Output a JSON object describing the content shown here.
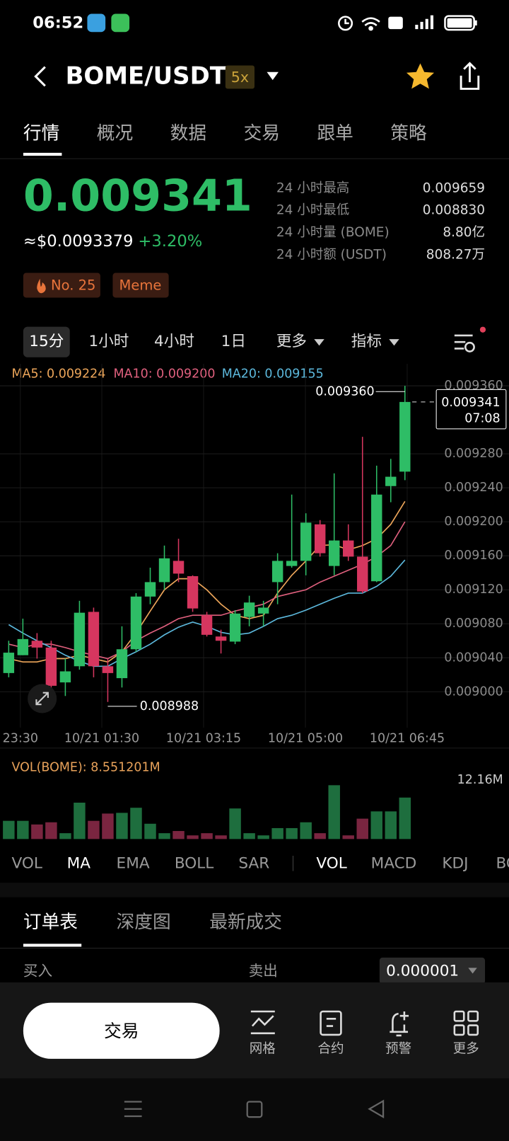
{
  "status_bar": {
    "time": "06:52"
  },
  "header": {
    "pair": "BOME/USDT",
    "leverage": "5x"
  },
  "tabs": [
    "行情",
    "概况",
    "数据",
    "交易",
    "跟单",
    "策略"
  ],
  "ticker": {
    "price": "0.009341",
    "usd_price": "≈$0.0093379",
    "change": "+3.20%",
    "tags": [
      "No. 25",
      "Meme"
    ],
    "stats": [
      {
        "label": "24 小时最高",
        "value": "0.009659"
      },
      {
        "label": "24 小时最低",
        "value": "0.008830"
      },
      {
        "label": "24 小时量 (BOME)",
        "value": "8.80亿"
      },
      {
        "label": "24 小时额 (USDT)",
        "value": "808.27万"
      }
    ]
  },
  "intervals": [
    "15分",
    "1小时",
    "4小时",
    "1日",
    "更多",
    "指标"
  ],
  "chart_data": {
    "type": "candlestick",
    "up_color": "#2ebd66",
    "down_color": "#d6365f",
    "legend_labels": [
      "MA5: 0.009224",
      "MA10: 0.009200",
      "MA20: 0.009155"
    ],
    "candles": {
      "open": [
        0.009022,
        0.009043,
        0.00906,
        0.009052,
        0.009011,
        0.00903,
        0.009094,
        0.00903,
        0.009016,
        0.00905,
        0.009112,
        0.009129,
        0.009154,
        0.009136,
        0.00909,
        0.009065,
        0.009059,
        0.009088,
        0.009092,
        0.009129,
        0.009148,
        0.009154,
        0.009197,
        0.009148,
        0.009178,
        0.009159,
        0.00913,
        0.009242,
        0.009259
      ],
      "high": [
        0.00906,
        0.009086,
        0.009069,
        0.00906,
        0.009039,
        0.009107,
        0.009099,
        0.009039,
        0.009077,
        0.009116,
        0.009146,
        0.009172,
        0.00918,
        0.009137,
        0.009094,
        0.009073,
        0.009096,
        0.009113,
        0.009107,
        0.009163,
        0.009232,
        0.00921,
        0.009202,
        0.009257,
        0.009197,
        0.0093,
        0.009266,
        0.009274,
        0.00936
      ],
      "low": [
        0.009017,
        0.009043,
        0.009039,
        0.008995,
        0.008995,
        0.009026,
        0.009017,
        0.008988,
        0.009005,
        0.009047,
        0.009103,
        0.00912,
        0.009129,
        0.009094,
        0.009065,
        0.009045,
        0.009056,
        0.009077,
        0.009077,
        0.009103,
        0.009146,
        0.009137,
        0.009159,
        0.009137,
        0.009154,
        0.009116,
        0.009129,
        0.009223,
        0.009249
      ],
      "close": [
        0.009046,
        0.009062,
        0.009052,
        0.009007,
        0.009024,
        0.009093,
        0.00903,
        0.009022,
        0.00905,
        0.009112,
        0.009129,
        0.009157,
        0.009139,
        0.009098,
        0.009067,
        0.00906,
        0.009092,
        0.009105,
        0.009099,
        0.009154,
        0.009154,
        0.009199,
        0.009163,
        0.009178,
        0.009159,
        0.009118,
        0.009232,
        0.009253,
        0.009341
      ]
    },
    "series": [
      {
        "name": "MA5",
        "color": "#eda65a",
        "values": [
          0.009039,
          0.009035,
          0.009035,
          0.009039,
          0.009039,
          0.009043,
          0.009039,
          0.009035,
          0.009047,
          0.009069,
          0.009095,
          0.00912,
          0.009133,
          0.009133,
          0.00912,
          0.009103,
          0.00909,
          0.009086,
          0.00909,
          0.009116,
          0.009137,
          0.009154,
          0.009172,
          0.009173,
          0.009167,
          0.009172,
          0.00918,
          0.009197,
          0.009224
        ]
      },
      {
        "name": "MA10",
        "color": "#e0607e",
        "values": [
          0.009056,
          0.009052,
          0.009056,
          0.009056,
          0.009052,
          0.009047,
          0.009043,
          0.009039,
          0.009047,
          0.00906,
          0.009069,
          0.009077,
          0.009086,
          0.00909,
          0.00909,
          0.00909,
          0.009095,
          0.009099,
          0.009103,
          0.009112,
          0.009116,
          0.00912,
          0.009129,
          0.009136,
          0.009143,
          0.00915,
          0.009159,
          0.009172,
          0.0092
        ]
      },
      {
        "name": "MA20",
        "color": "#5cb8dc",
        "values": [
          0.009079,
          0.009069,
          0.00906,
          0.009052,
          0.009043,
          0.009036,
          0.00903,
          0.00903,
          0.009039,
          0.009047,
          0.009056,
          0.009067,
          0.009076,
          0.009082,
          0.009077,
          0.00907,
          0.009067,
          0.009069,
          0.009077,
          0.009086,
          0.00909,
          0.009096,
          0.009103,
          0.00911,
          0.009116,
          0.009116,
          0.009124,
          0.009136,
          0.009155
        ]
      }
    ],
    "ylim": [
      0.008962,
      0.009379
    ],
    "yticks": [
      {
        "value": 0.00936,
        "label": "0.009360"
      },
      {
        "value": 0.00928,
        "label": "0.009280"
      },
      {
        "value": 0.00924,
        "label": "0.009240"
      },
      {
        "value": 0.0092,
        "label": "0.009200"
      },
      {
        "value": 0.00916,
        "label": "0.009160"
      },
      {
        "value": 0.00912,
        "label": "0.009120"
      },
      {
        "value": 0.00908,
        "label": "0.009080"
      },
      {
        "value": 0.00904,
        "label": "0.009040"
      },
      {
        "value": 0.009,
        "label": "0.009000"
      }
    ],
    "x_labels": [
      "23:30",
      "10/21 01:30",
      "10/21 03:15",
      "10/21 05:00",
      "10/21 06:45"
    ],
    "high_label": "0.009360",
    "low_label": "0.008988",
    "last_price_label": "0.009341",
    "countdown": "07:08",
    "volume": {
      "title": "VOL(BOME): 8.551201M",
      "values": [
        3.75,
        3.75,
        3.0,
        3.45,
        1.2,
        7.5,
        3.75,
        5.25,
        5.4,
        6.45,
        3.15,
        1.2,
        1.65,
        0.75,
        1.2,
        0.75,
        6.3,
        1.2,
        0.75,
        2.25,
        2.25,
        3.45,
        1.2,
        11.1,
        0.75,
        4.2,
        5.7,
        5.7,
        8.551201
      ],
      "ylim": [
        0,
        12.16
      ],
      "yticks": [
        {
          "value": 12.16,
          "label": "12.16M"
        }
      ]
    }
  },
  "indicator_tabs": [
    "VOL",
    "MA",
    "EMA",
    "BOLL",
    "SAR",
    "VOL",
    "MACD",
    "KDJ",
    "BOLL"
  ],
  "order_book": {
    "tabs": [
      "订单表",
      "深度图",
      "最新成交"
    ],
    "buy": "买入",
    "sell": "卖出",
    "precision": "0.000001"
  },
  "bottom_bar": {
    "trade_button": "交易",
    "actions": [
      "网格",
      "合约",
      "预警",
      "更多"
    ]
  }
}
